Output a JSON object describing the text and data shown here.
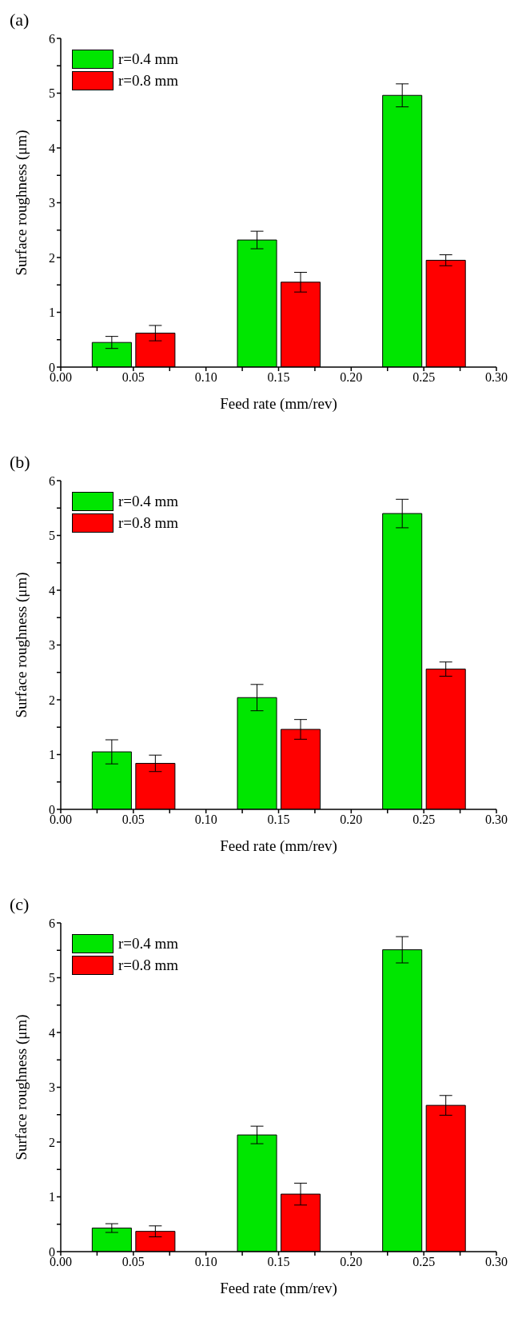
{
  "chart_data": [
    {
      "type": "bar",
      "title": "(a)",
      "xlabel": "Feed rate (mm/rev)",
      "ylabel": "Surface roughness (μm)",
      "legend": "top left",
      "grid": false,
      "xlim": [
        0,
        0.3
      ],
      "xticks": [
        {
          "value": 0,
          "label": "0.00"
        },
        {
          "value": 0.025,
          "label": null
        },
        {
          "value": 0.05,
          "label": "0.05"
        },
        {
          "value": 0.075,
          "label": null
        },
        {
          "value": 0.1,
          "label": "0.10"
        },
        {
          "value": 0.125,
          "label": null
        },
        {
          "value": 0.15,
          "label": "0.15"
        },
        {
          "value": 0.175,
          "label": null
        },
        {
          "value": 0.2,
          "label": "0.20"
        },
        {
          "value": 0.225,
          "label": null
        },
        {
          "value": 0.25,
          "label": "0.25"
        },
        {
          "value": 0.275,
          "label": null
        },
        {
          "value": 0.3,
          "label": "0.30"
        }
      ],
      "ylim": [
        0,
        6
      ],
      "yticks": [
        0,
        {
          "value": 0.5,
          "label": null
        },
        1,
        {
          "value": 1.5,
          "label": null
        },
        2,
        {
          "value": 2.5,
          "label": null
        },
        3,
        {
          "value": 3.5,
          "label": null
        },
        4,
        {
          "value": 4.5,
          "label": null
        },
        5,
        {
          "value": 5.5,
          "label": null
        },
        6
      ],
      "series": [
        {
          "name": "r=0.4 mm",
          "color": "#00e600",
          "x": [
            0.035,
            0.135,
            0.235
          ],
          "values": [
            0.45,
            2.32,
            4.96
          ],
          "errors": [
            0.11,
            0.16,
            0.21
          ]
        },
        {
          "name": "r=0.8 mm",
          "color": "#ff0000",
          "x": [
            0.065,
            0.165,
            0.265
          ],
          "values": [
            0.62,
            1.55,
            1.95
          ],
          "errors": [
            0.14,
            0.18,
            0.1
          ]
        }
      ]
    },
    {
      "type": "bar",
      "title": "(b)",
      "xlabel": "Feed rate (mm/rev)",
      "ylabel": "Surface roughness (μm)",
      "legend": "top left",
      "grid": false,
      "xlim": [
        0,
        0.3
      ],
      "xticks": [
        {
          "value": 0,
          "label": "0.00"
        },
        {
          "value": 0.025,
          "label": null
        },
        {
          "value": 0.05,
          "label": "0.05"
        },
        {
          "value": 0.075,
          "label": null
        },
        {
          "value": 0.1,
          "label": "0.10"
        },
        {
          "value": 0.125,
          "label": null
        },
        {
          "value": 0.15,
          "label": "0.15"
        },
        {
          "value": 0.175,
          "label": null
        },
        {
          "value": 0.2,
          "label": "0.20"
        },
        {
          "value": 0.225,
          "label": null
        },
        {
          "value": 0.25,
          "label": "0.25"
        },
        {
          "value": 0.275,
          "label": null
        },
        {
          "value": 0.3,
          "label": "0.30"
        }
      ],
      "ylim": [
        0,
        6
      ],
      "yticks": [
        0,
        {
          "value": 0.5,
          "label": null
        },
        1,
        {
          "value": 1.5,
          "label": null
        },
        2,
        {
          "value": 2.5,
          "label": null
        },
        3,
        {
          "value": 3.5,
          "label": null
        },
        4,
        {
          "value": 4.5,
          "label": null
        },
        5,
        {
          "value": 5.5,
          "label": null
        },
        6
      ],
      "series": [
        {
          "name": "r=0.4 mm",
          "color": "#00e600",
          "x": [
            0.035,
            0.135,
            0.235
          ],
          "values": [
            1.05,
            2.04,
            5.4
          ],
          "errors": [
            0.22,
            0.24,
            0.26
          ]
        },
        {
          "name": "r=0.8 mm",
          "color": "#ff0000",
          "x": [
            0.065,
            0.165,
            0.265
          ],
          "values": [
            0.84,
            1.46,
            2.56
          ],
          "errors": [
            0.15,
            0.18,
            0.13
          ]
        }
      ]
    },
    {
      "type": "bar",
      "title": "(c)",
      "xlabel": "Feed rate (mm/rev)",
      "ylabel": "Surface roughness (μm)",
      "legend": "top left",
      "grid": false,
      "xlim": [
        0,
        0.3
      ],
      "xticks": [
        {
          "value": 0,
          "label": "0.00"
        },
        {
          "value": 0.025,
          "label": null
        },
        {
          "value": 0.05,
          "label": "0.05"
        },
        {
          "value": 0.075,
          "label": null
        },
        {
          "value": 0.1,
          "label": "0.10"
        },
        {
          "value": 0.125,
          "label": null
        },
        {
          "value": 0.15,
          "label": "0.15"
        },
        {
          "value": 0.175,
          "label": null
        },
        {
          "value": 0.2,
          "label": "0.20"
        },
        {
          "value": 0.225,
          "label": null
        },
        {
          "value": 0.25,
          "label": "0.25"
        },
        {
          "value": 0.275,
          "label": null
        },
        {
          "value": 0.3,
          "label": "0.30"
        }
      ],
      "ylim": [
        0,
        6
      ],
      "yticks": [
        0,
        {
          "value": 0.5,
          "label": null
        },
        1,
        {
          "value": 1.5,
          "label": null
        },
        2,
        {
          "value": 2.5,
          "label": null
        },
        3,
        {
          "value": 3.5,
          "label": null
        },
        4,
        {
          "value": 4.5,
          "label": null
        },
        5,
        {
          "value": 5.5,
          "label": null
        },
        6
      ],
      "series": [
        {
          "name": "r=0.4 mm",
          "color": "#00e600",
          "x": [
            0.035,
            0.135,
            0.235
          ],
          "values": [
            0.43,
            2.13,
            5.51
          ],
          "errors": [
            0.08,
            0.16,
            0.24
          ]
        },
        {
          "name": "r=0.8 mm",
          "color": "#ff0000",
          "x": [
            0.065,
            0.165,
            0.265
          ],
          "values": [
            0.37,
            1.05,
            2.67
          ],
          "errors": [
            0.1,
            0.2,
            0.18
          ]
        }
      ]
    }
  ]
}
